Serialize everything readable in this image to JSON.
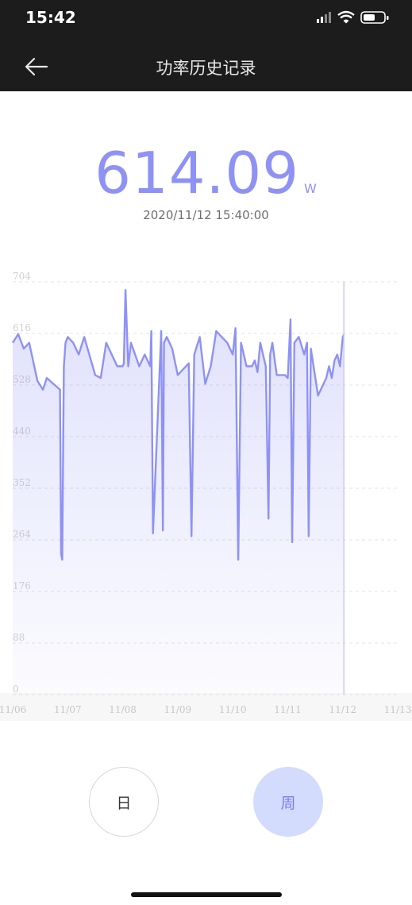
{
  "status_bar": {
    "time": "15:42"
  },
  "nav": {
    "title": "功率历史记录",
    "back_icon": "back-arrow-icon"
  },
  "reading": {
    "value": "614.09",
    "unit": "W",
    "timestamp": "2020/11/12 15:40:00"
  },
  "tabs": [
    {
      "label": "日",
      "selected": false
    },
    {
      "label": "周",
      "selected": true
    }
  ],
  "colors": {
    "accent": "#8e92f4",
    "selected_tab_bg": "#d3dcfc",
    "header_bg": "#1c1c1c"
  },
  "chart_data": {
    "type": "area",
    "title": "",
    "xlabel": "",
    "ylabel": "",
    "ylim": [
      0,
      704
    ],
    "yticks": [
      "0",
      "88",
      "176",
      "264",
      "352",
      "440",
      "528",
      "616",
      "704"
    ],
    "xticks": [
      "11/06",
      "11/07",
      "11/08",
      "11/09",
      "11/10",
      "11/11",
      "11/12",
      "11/13"
    ],
    "xlim": [
      0,
      7
    ],
    "grid": true,
    "cursor_x": 6.02,
    "series": [
      {
        "x": [
          0,
          0.1,
          0.2,
          0.3,
          0.45,
          0.55,
          0.62,
          0.86,
          0.88,
          0.9,
          0.93,
          0.96,
          1.0,
          1.1,
          1.2,
          1.3,
          1.5,
          1.6,
          1.7,
          1.9,
          2.0,
          2.02,
          2.05,
          2.1,
          2.15,
          2.3,
          2.4,
          2.5,
          2.52,
          2.55,
          2.7,
          2.73,
          2.75,
          2.8,
          2.9,
          3.0,
          3.2,
          3.25,
          3.3,
          3.4,
          3.5,
          3.6,
          3.65,
          3.7,
          3.9,
          4.0,
          4.05,
          4.1,
          4.15,
          4.25,
          4.35,
          4.4,
          4.45,
          4.5,
          4.6,
          4.65,
          4.68,
          4.72,
          4.8,
          4.95,
          5.0,
          5.05,
          5.08,
          5.12,
          5.2,
          5.3,
          5.35,
          5.38,
          5.42,
          5.55,
          5.7,
          5.75,
          5.8,
          5.85,
          5.9,
          5.95,
          6.0,
          6.02
        ],
        "y": [
          600,
          615,
          590,
          600,
          535,
          520,
          540,
          520,
          240,
          230,
          560,
          600,
          610,
          600,
          580,
          610,
          545,
          540,
          600,
          560,
          560,
          565,
          690,
          560,
          600,
          560,
          580,
          560,
          620,
          275,
          620,
          280,
          600,
          610,
          590,
          545,
          565,
          270,
          580,
          610,
          530,
          560,
          590,
          620,
          600,
          580,
          625,
          230,
          600,
          560,
          560,
          570,
          550,
          600,
          560,
          300,
          580,
          600,
          545,
          545,
          540,
          640,
          260,
          600,
          610,
          580,
          600,
          270,
          590,
          510,
          540,
          560,
          540,
          570,
          580,
          560,
          610,
          614
        ]
      }
    ]
  }
}
